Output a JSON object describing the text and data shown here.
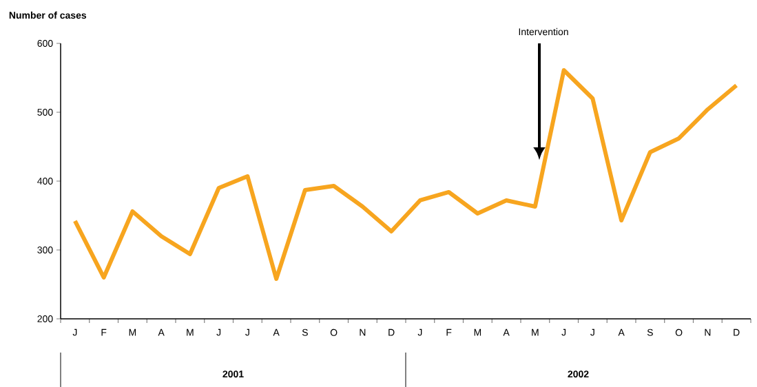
{
  "chart_data": {
    "type": "line",
    "ylabel": "Number of cases",
    "categories": [
      "J",
      "F",
      "M",
      "A",
      "M",
      "J",
      "J",
      "A",
      "S",
      "O",
      "N",
      "D",
      "J",
      "F",
      "M",
      "A",
      "M",
      "J",
      "J",
      "A",
      "S",
      "O",
      "N",
      "D"
    ],
    "values": [
      342,
      260,
      356,
      320,
      294,
      390,
      407,
      258,
      387,
      393,
      363,
      327,
      372,
      384,
      353,
      372,
      363,
      561,
      520,
      343,
      442,
      462,
      504,
      539
    ],
    "color": "#f7a51f",
    "line_style": "solid",
    "marker": "none",
    "grid": false,
    "ylim": [
      200,
      600
    ],
    "yticks": [
      200,
      300,
      400,
      500,
      600
    ],
    "annotations": [
      "Intervention",
      "2001",
      "2002"
    ]
  }
}
